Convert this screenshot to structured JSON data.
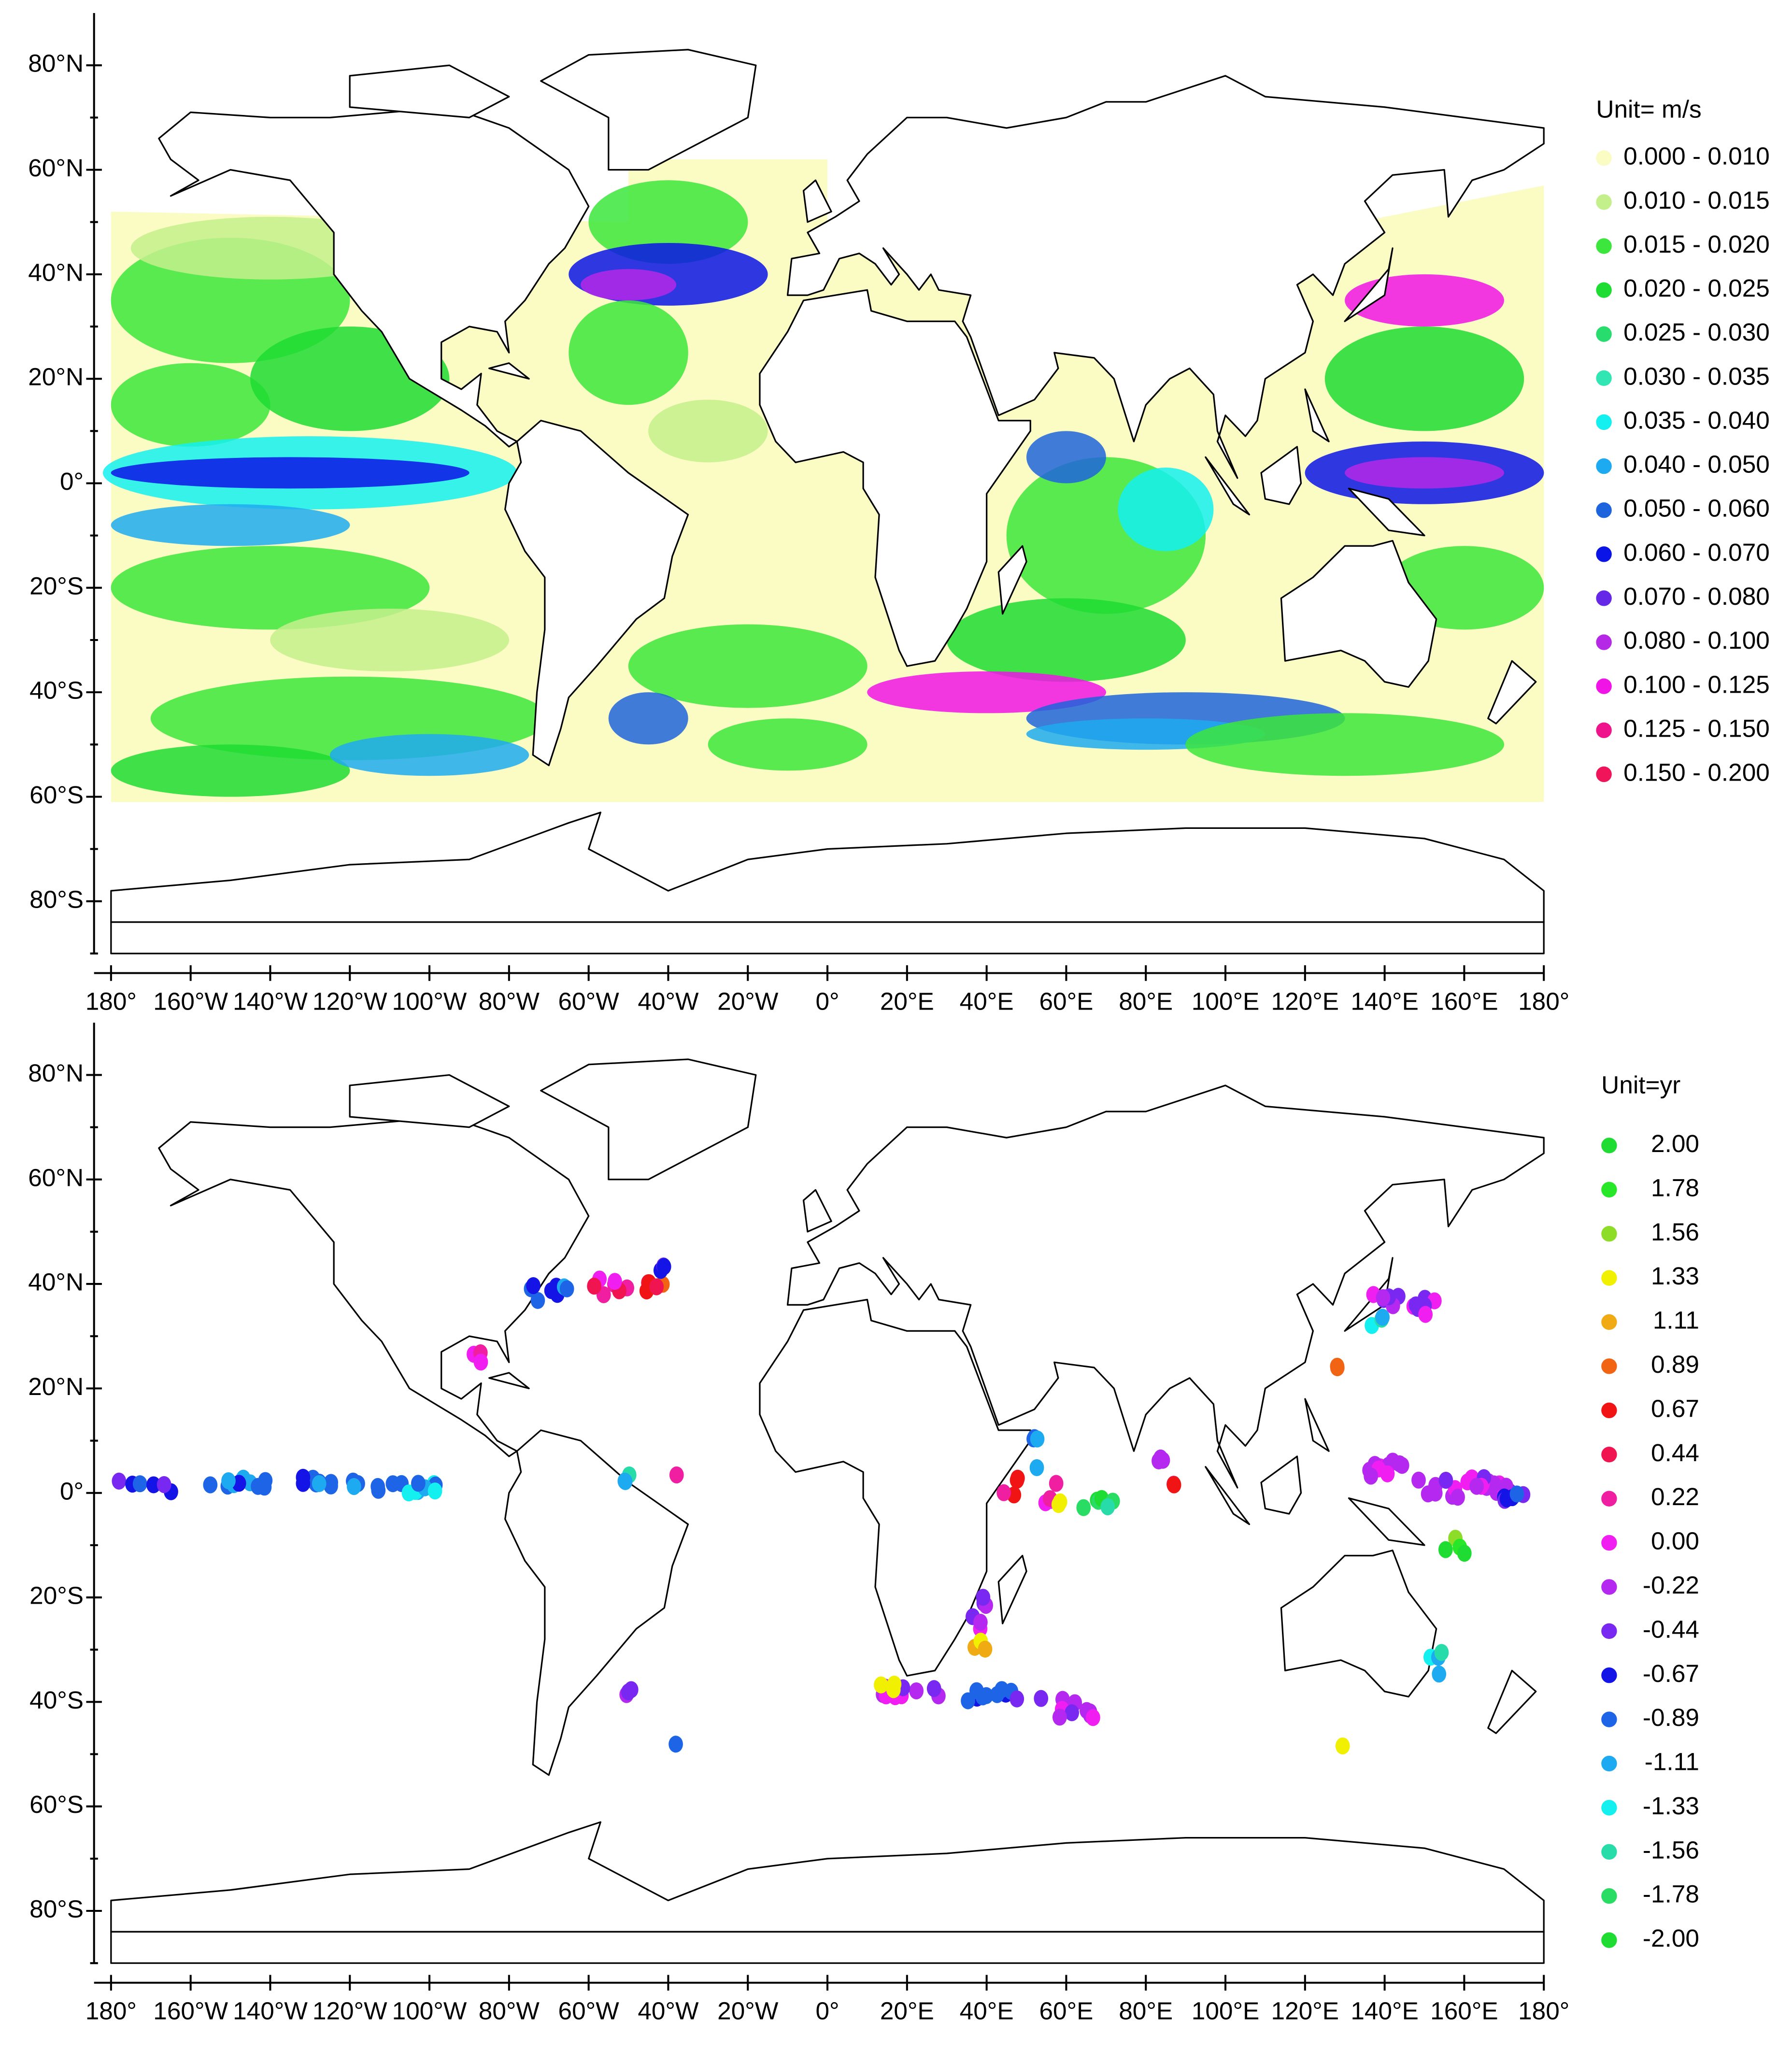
{
  "panels": [
    {
      "legend": {
        "title": "Unit= m/s",
        "items": [
          {
            "label": "0.000 - 0.010",
            "color": "#fbfbc4"
          },
          {
            "label": "0.010 - 0.015",
            "color": "#c4f08c"
          },
          {
            "label": "0.015 - 0.020",
            "color": "#3ce63c"
          },
          {
            "label": "0.020 - 0.025",
            "color": "#1edc32"
          },
          {
            "label": "0.025 - 0.030",
            "color": "#28dc6e"
          },
          {
            "label": "0.030 - 0.035",
            "color": "#32e6b4"
          },
          {
            "label": "0.035 - 0.040",
            "color": "#14f0f0"
          },
          {
            "label": "0.040 - 0.050",
            "color": "#1eaaf0"
          },
          {
            "label": "0.050 - 0.060",
            "color": "#1e64dc"
          },
          {
            "label": "0.060 - 0.070",
            "color": "#0a14e6"
          },
          {
            "label": "0.070 - 0.080",
            "color": "#6428e6"
          },
          {
            "label": "0.080 - 0.100",
            "color": "#b428e6"
          },
          {
            "label": "0.100 - 0.125",
            "color": "#f014e6"
          },
          {
            "label": "0.125 - 0.150",
            "color": "#f0148c"
          },
          {
            "label": "0.150 - 0.200",
            "color": "#f0145a"
          }
        ]
      },
      "lat_labels": [
        "80°N",
        "60°N",
        "40°N",
        "20°N",
        "0°",
        "20°S",
        "40°S",
        "60°S",
        "80°S"
      ],
      "lon_labels": [
        "180°",
        "160°W",
        "140°W",
        "120°W",
        "100°W",
        "80°W",
        "60°W",
        "40°W",
        "20°W",
        "0°",
        "20°E",
        "40°E",
        "60°E",
        "80°E",
        "100°E",
        "120°E",
        "140°E",
        "160°E",
        "180°"
      ]
    },
    {
      "legend": {
        "title": "Unit=yr",
        "items": [
          {
            "label": "2.00",
            "color": "#1edc32"
          },
          {
            "label": "1.78",
            "color": "#28e628"
          },
          {
            "label": "1.56",
            "color": "#8cdc28"
          },
          {
            "label": "1.33",
            "color": "#f0f000"
          },
          {
            "label": "1.11",
            "color": "#f0aa14"
          },
          {
            "label": "0.89",
            "color": "#f06414"
          },
          {
            "label": "0.67",
            "color": "#f01414"
          },
          {
            "label": "0.44",
            "color": "#f01450"
          },
          {
            "label": "0.22",
            "color": "#f01ea0"
          },
          {
            "label": "0.00",
            "color": "#f01ef0"
          },
          {
            "label": "-0.22",
            "color": "#b428f0"
          },
          {
            "label": "-0.44",
            "color": "#7828f0"
          },
          {
            "label": "-0.67",
            "color": "#1414e6"
          },
          {
            "label": "-0.89",
            "color": "#1e64e6"
          },
          {
            "label": "-1.11",
            "color": "#1eaaf0"
          },
          {
            "label": "-1.33",
            "color": "#14f0f0"
          },
          {
            "label": "-1.56",
            "color": "#28dcaa"
          },
          {
            "label": "-1.78",
            "color": "#28dc64"
          },
          {
            "label": "-2.00",
            "color": "#1edc32"
          }
        ]
      },
      "lat_labels": [
        "80°N",
        "60°N",
        "40°N",
        "20°N",
        "0°",
        "20°S",
        "40°S",
        "60°S",
        "80°S"
      ],
      "lon_labels": [
        "180°",
        "160°W",
        "140°W",
        "120°W",
        "100°W",
        "80°W",
        "60°W",
        "40°W",
        "20°W",
        "0°",
        "20°E",
        "40°E",
        "60°E",
        "80°E",
        "100°E",
        "120°E",
        "140°E",
        "160°E",
        "180°"
      ]
    }
  ]
}
